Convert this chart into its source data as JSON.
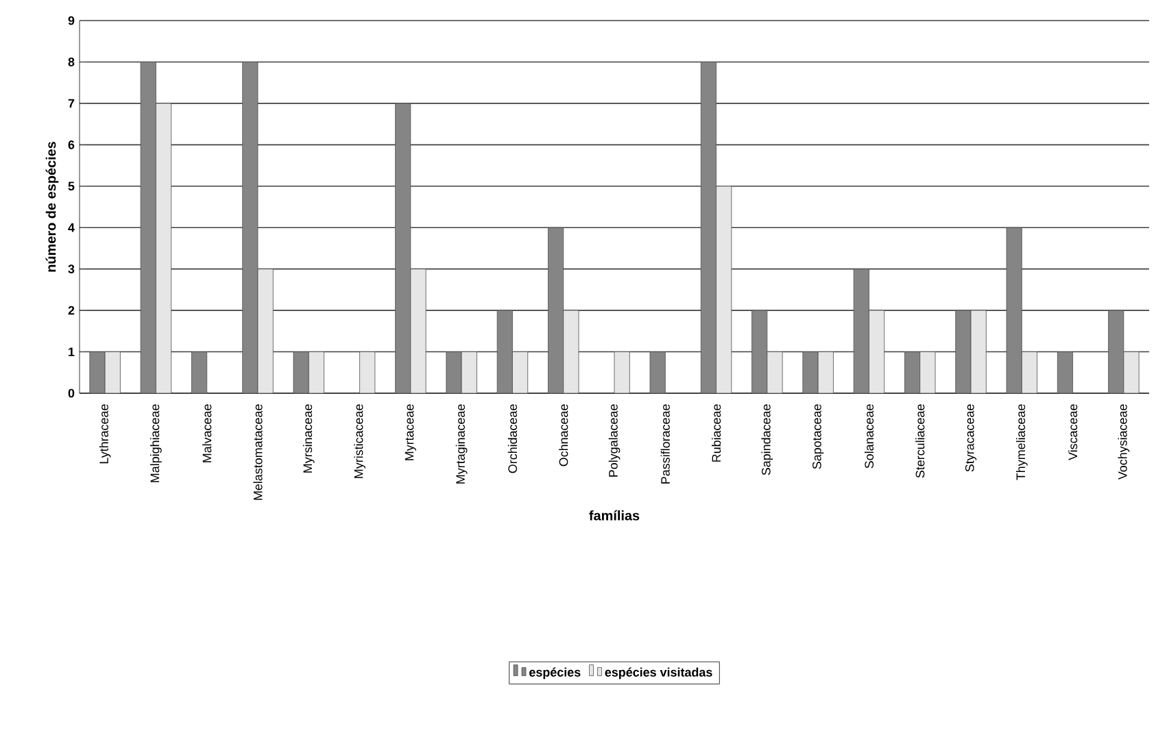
{
  "chart_data": {
    "type": "bar",
    "xlabel": "famílias",
    "ylabel": "número de espécies",
    "categories": [
      "Lythraceae",
      "Malpighiaceae",
      "Malvaceae",
      "Melastomataceae",
      "Myrsinaceae",
      "Myristicaceae",
      "Myrtaceae",
      "Myrtaginaceae",
      "Orchidaceae",
      "Ochnaceae",
      "Polygalaceae",
      "Passifloraceae",
      "Rubiaceae",
      "Sapindaceae",
      "Sapotaceae",
      "Solanaceae",
      "Sterculiaceae",
      "Styracaceae",
      "Thymeliaceae",
      "Viscaceae",
      "Vochysiaceae"
    ],
    "series": [
      {
        "name": "espécies",
        "color": "#858585",
        "values": [
          1,
          8,
          1,
          8,
          1,
          0,
          7,
          1,
          2,
          4,
          0,
          1,
          8,
          2,
          1,
          3,
          1,
          2,
          4,
          1,
          2
        ]
      },
      {
        "name": "espécies visitadas",
        "color": "#e6e6e6",
        "values": [
          1,
          7,
          0,
          3,
          1,
          1,
          3,
          1,
          1,
          2,
          1,
          0,
          5,
          1,
          1,
          2,
          1,
          2,
          1,
          0,
          1
        ]
      }
    ],
    "ylim": [
      0,
      9
    ],
    "yticks": [
      0,
      1,
      2,
      3,
      4,
      5,
      6,
      7,
      8,
      9
    ],
    "grid": "y",
    "legend": "bottom"
  }
}
